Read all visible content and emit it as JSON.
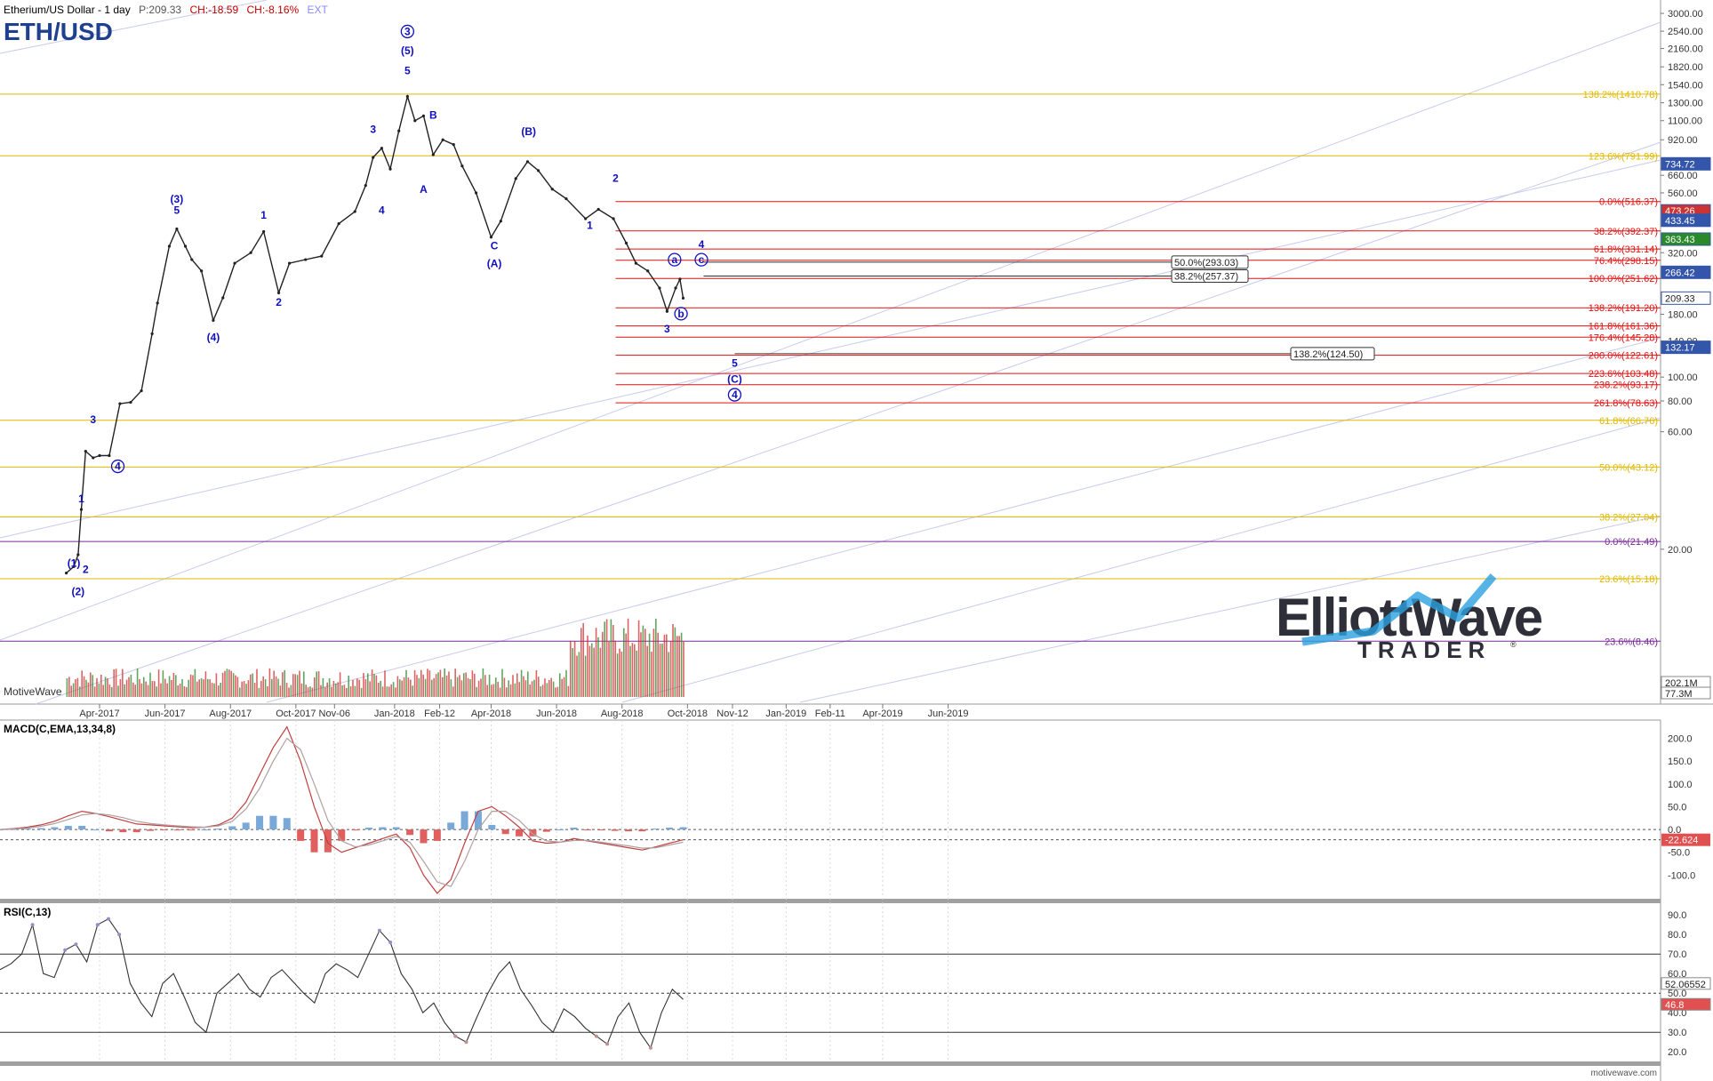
{
  "header": {
    "title": "Etherium/US Dollar - 1 day",
    "symbol": "ETH/USD",
    "price": "P:209.33",
    "change_abs": "CH:-18.59",
    "change_pct": "CH:-8.16%",
    "ext": "EXT"
  },
  "watermark": "MotiveWave",
  "footer_url": "motivewave.com",
  "logo": {
    "line1": "ElliottWave",
    "line2": "TRADER",
    "reg": "®"
  },
  "colors": {
    "wave_label": "#1010c0",
    "fib_yellow": "#e0b800",
    "fib_red": "#e01010",
    "fib_purple": "#7a2a9a",
    "up_bar": "#2a8a2a",
    "down_bar": "#d03030",
    "macd_line": "#c04040",
    "signal_line": "#b0a0a0",
    "hist_pos": "#7aa8d8",
    "hist_neg": "#e06060",
    "rsi_line": "#333333",
    "brand_blue": "#2aa0e0"
  },
  "chart_data": [
    {
      "type": "line",
      "title": "Etherium/US Dollar - 1 day",
      "y_scale": "log",
      "ylim": [
        4.7,
        3400
      ],
      "x_tick_labels": [
        "Apr-2017",
        "Jun-2017",
        "Aug-2017",
        "Oct-2017",
        "Nov-06",
        "Jan-2018",
        "Feb-12",
        "Apr-2018",
        "Jun-2018",
        "Aug-2018",
        "Oct-2018",
        "Nov-12",
        "Jan-2019",
        "Feb-11",
        "Apr-2019",
        "Jun-2019"
      ],
      "y_tick_labels": [
        "3000.00",
        "2540.00",
        "2160.00",
        "1820.00",
        "1540.00",
        "1300.00",
        "1100.00",
        "920.00",
        "660.00",
        "560.00",
        "320.00",
        "180.00",
        "140.00",
        "100.00",
        "80.00",
        "60.00",
        "20.00"
      ],
      "series": [
        {
          "name": "ETH/USD",
          "x": [
            "2017-03-01",
            "2017-03-08",
            "2017-03-12",
            "2017-03-15",
            "2017-03-19",
            "2017-03-26",
            "2017-04-01",
            "2017-04-10",
            "2017-04-20",
            "2017-04-30",
            "2017-05-10",
            "2017-05-20",
            "2017-05-25",
            "2017-06-05",
            "2017-06-12",
            "2017-06-20",
            "2017-06-26",
            "2017-07-05",
            "2017-07-16",
            "2017-07-25",
            "2017-08-05",
            "2017-08-20",
            "2017-09-01",
            "2017-09-15",
            "2017-09-25",
            "2017-10-10",
            "2017-10-25",
            "2017-11-10",
            "2017-11-25",
            "2017-12-05",
            "2017-12-12",
            "2017-12-20",
            "2017-12-28",
            "2018-01-05",
            "2018-01-13",
            "2018-01-20",
            "2018-01-28",
            "2018-02-06",
            "2018-02-15",
            "2018-02-25",
            "2018-03-05",
            "2018-03-18",
            "2018-04-01",
            "2018-04-10",
            "2018-04-24",
            "2018-05-05",
            "2018-05-15",
            "2018-05-28",
            "2018-06-10",
            "2018-06-28",
            "2018-07-10",
            "2018-07-24",
            "2018-08-05",
            "2018-08-14",
            "2018-08-25",
            "2018-09-05",
            "2018-09-12",
            "2018-09-20",
            "2018-09-24",
            "2018-09-27"
          ],
          "values": [
            16,
            17,
            19,
            29,
            50,
            47,
            48,
            48,
            78,
            79,
            88,
            150,
            200,
            340,
            400,
            340,
            300,
            270,
            170,
            210,
            290,
            320,
            390,
            220,
            290,
            300,
            310,
            420,
            470,
            600,
            780,
            850,
            700,
            1000,
            1380,
            1100,
            1150,
            800,
            920,
            880,
            720,
            560,
            370,
            430,
            640,
            750,
            690,
            580,
            530,
            440,
            480,
            440,
            350,
            290,
            270,
            230,
            185,
            230,
            250,
            209.33
          ]
        }
      ],
      "annotations": [
        {
          "label": "(1)",
          "x": "2017-03-08",
          "y": 17
        },
        {
          "label": "(2)",
          "x": "2017-03-12",
          "y": 13
        },
        {
          "label": "1",
          "x": "2017-03-15",
          "y": 31
        },
        {
          "label": "2",
          "x": "2017-03-19",
          "y": 16
        },
        {
          "label": "3",
          "x": "2017-03-26",
          "y": 65
        },
        {
          "label": "4",
          "x": "2017-04-18",
          "y": 42
        },
        {
          "label": "(3)",
          "x": "2017-06-12",
          "y": 510
        },
        {
          "label": "5",
          "x": "2017-06-12",
          "y": 460
        },
        {
          "label": "(4)",
          "x": "2017-07-16",
          "y": 140
        },
        {
          "label": "1",
          "x": "2017-09-01",
          "y": 440
        },
        {
          "label": "2",
          "x": "2017-09-15",
          "y": 195
        },
        {
          "label": "3",
          "x": "2017-12-12",
          "y": 980
        },
        {
          "label": "4",
          "x": "2017-12-20",
          "y": 460
        },
        {
          "label": "3",
          "x": "2018-01-13",
          "y": 2450
        },
        {
          "label": "(5)",
          "x": "2018-01-13",
          "y": 2050
        },
        {
          "label": "5",
          "x": "2018-01-13",
          "y": 1700
        },
        {
          "label": "A",
          "x": "2018-01-28",
          "y": 560
        },
        {
          "label": "B",
          "x": "2018-02-06",
          "y": 1120
        },
        {
          "label": "C",
          "x": "2018-04-04",
          "y": 330
        },
        {
          "label": "(A)",
          "x": "2018-04-04",
          "y": 280
        },
        {
          "label": "(B)",
          "x": "2018-05-06",
          "y": 960
        },
        {
          "label": "1",
          "x": "2018-07-02",
          "y": 400
        },
        {
          "label": "2",
          "x": "2018-07-26",
          "y": 620
        },
        {
          "label": "3",
          "x": "2018-09-12",
          "y": 152
        },
        {
          "label": "4",
          "x": "2018-10-14",
          "y": 335
        },
        {
          "label": "a",
          "x": "2018-09-19",
          "y": 290
        },
        {
          "label": "b",
          "x": "2018-09-25",
          "y": 175
        },
        {
          "label": "c",
          "x": "2018-10-14",
          "y": 290
        },
        {
          "label": "5",
          "x": "2018-11-14",
          "y": 110
        },
        {
          "label": "(C)",
          "x": "2018-11-14",
          "y": 95
        },
        {
          "label": "4",
          "x": "2018-11-14",
          "y": 82
        }
      ],
      "fib_levels_yellow": [
        {
          "label": "138.2%(1410.78)",
          "value": 1410.78
        },
        {
          "label": "123.6%(791.99)",
          "value": 791.99
        },
        {
          "label": "61.8%(66.76)",
          "value": 66.76
        },
        {
          "label": "50.0%(43.12)",
          "value": 43.12
        },
        {
          "label": "38.2%(27.04)",
          "value": 27.04
        },
        {
          "label": "23.6%(15.18)",
          "value": 15.18
        }
      ],
      "fib_levels_purple": [
        {
          "label": "0.0%(21.49)",
          "value": 21.49
        },
        {
          "label": "23.6%(8.46)",
          "value": 8.46
        }
      ],
      "fib_levels_red": [
        {
          "label": "0.0%(516.37)",
          "value": 516.37
        },
        {
          "label": "38.2%(392.37)",
          "value": 392.37
        },
        {
          "label": "61.8%(331.14)",
          "value": 331.14
        },
        {
          "label": "76.4%(298.15)",
          "value": 298.15
        },
        {
          "label": "100.0%(251.62)",
          "value": 251.62
        },
        {
          "label": "138.2%(191.20)",
          "value": 191.2
        },
        {
          "label": "161.8%(161.36)",
          "value": 161.36
        },
        {
          "label": "176.4%(145.28)",
          "value": 145.28
        },
        {
          "label": "200.0%(122.61)",
          "value": 122.61
        },
        {
          "label": "223.6%(103.48)",
          "value": 103.48
        },
        {
          "label": "238.2%(93.17)",
          "value": 93.17
        },
        {
          "label": "261.8%(78.63)",
          "value": 78.63
        }
      ],
      "fib_boxes": [
        {
          "label": "50.0%(293.03)",
          "value": 293.03
        },
        {
          "label": "38.2%(257.37)",
          "value": 257.37
        },
        {
          "label": "138.2%(124.50)",
          "value": 124.5
        }
      ],
      "price_tags": [
        {
          "label": "734.72",
          "value": 734.72,
          "color": "#3355aa"
        },
        {
          "label": "473.26",
          "value": 473.26,
          "color": "#cc3333"
        },
        {
          "label": "433.45",
          "value": 433.45,
          "color": "#3355aa"
        },
        {
          "label": "363.43",
          "value": 363.43,
          "color": "#2a8a2a"
        },
        {
          "label": "266.42",
          "value": 266.42,
          "color": "#3355aa"
        },
        {
          "label": "209.33",
          "value": 209.33,
          "color": "#ffffff"
        },
        {
          "label": "132.17",
          "value": 132.17,
          "color": "#3355aa"
        }
      ],
      "volume_tags": [
        "202.1M",
        "77.3M"
      ]
    },
    {
      "type": "line",
      "title": "MACD(C,EMA,13,34,8)",
      "ylim": [
        -150,
        240
      ],
      "y_tick_labels": [
        "200.0",
        "150.0",
        "100.0",
        "50.0",
        "0.0",
        "-50.0",
        "-100.0"
      ],
      "last_value_label": "-22.624",
      "series": [
        {
          "name": "MACD",
          "values": [
            0,
            2,
            5,
            10,
            18,
            30,
            40,
            35,
            28,
            20,
            12,
            10,
            8,
            6,
            4,
            5,
            10,
            25,
            60,
            120,
            180,
            225,
            150,
            50,
            -30,
            -50,
            -40,
            -30,
            -20,
            -10,
            -40,
            -100,
            -140,
            -110,
            -30,
            40,
            50,
            30,
            5,
            -25,
            -30,
            -28,
            -20,
            -25,
            -30,
            -35,
            -40,
            -45,
            -38,
            -30,
            -22.6
          ]
        },
        {
          "name": "Signal",
          "values": [
            0,
            1,
            3,
            7,
            13,
            22,
            32,
            35,
            32,
            26,
            18,
            13,
            10,
            8,
            6,
            5,
            8,
            18,
            45,
            90,
            150,
            200,
            175,
            100,
            20,
            -25,
            -38,
            -34,
            -25,
            -15,
            -28,
            -70,
            -115,
            -125,
            -70,
            0,
            40,
            40,
            20,
            -10,
            -25,
            -28,
            -24,
            -24,
            -28,
            -32,
            -36,
            -41,
            -40,
            -34,
            -28
          ]
        },
        {
          "name": "Histogram",
          "values": [
            0,
            1,
            2,
            3,
            5,
            8,
            8,
            0,
            -4,
            -6,
            -6,
            -3,
            -2,
            -2,
            -2,
            0,
            2,
            7,
            15,
            30,
            30,
            25,
            -25,
            -50,
            -50,
            -25,
            -2,
            4,
            5,
            5,
            -12,
            -30,
            -25,
            15,
            40,
            40,
            10,
            -10,
            -15,
            -15,
            -5,
            0,
            4,
            -1,
            -2,
            -3,
            -4,
            -4,
            2,
            4,
            5
          ]
        }
      ]
    },
    {
      "type": "line",
      "title": "RSI(C,13)",
      "ylim": [
        16,
        96
      ],
      "y_tick_labels": [
        "90.0",
        "80.0",
        "70.0",
        "60.0",
        "50.0",
        "40.0",
        "30.0",
        "20.0"
      ],
      "reference_lines": [
        70,
        50,
        30
      ],
      "last_value_labels": [
        "52.06552",
        "46.8"
      ],
      "series": [
        {
          "name": "RSI",
          "values": [
            62,
            65,
            70,
            85,
            60,
            58,
            72,
            75,
            66,
            85,
            88,
            80,
            55,
            45,
            38,
            55,
            60,
            48,
            35,
            30,
            50,
            55,
            60,
            52,
            48,
            58,
            62,
            56,
            50,
            45,
            60,
            65,
            62,
            58,
            70,
            82,
            76,
            60,
            52,
            40,
            45,
            35,
            28,
            25,
            38,
            50,
            60,
            66,
            52,
            44,
            35,
            30,
            42,
            38,
            32,
            28,
            24,
            38,
            45,
            30,
            22,
            40,
            52,
            46.8
          ]
        }
      ]
    }
  ]
}
